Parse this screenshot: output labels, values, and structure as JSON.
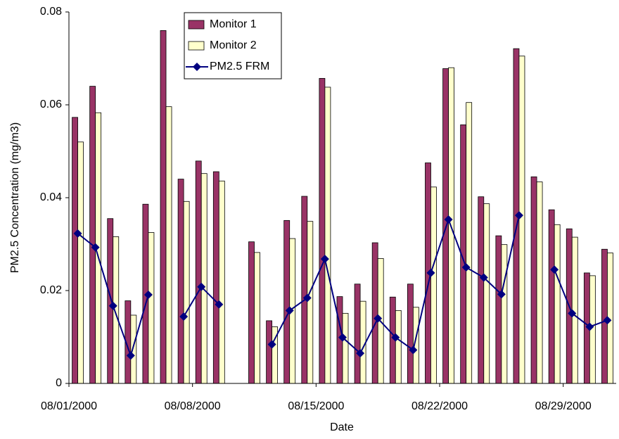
{
  "chart_data": {
    "type": "bar_line",
    "x_label": "Date",
    "y_label": "PM2.5 Concentration (mg/m3)",
    "categories": [
      "08/01/2000",
      null,
      null,
      null,
      null,
      null,
      null,
      "08/08/2000",
      null,
      null,
      null,
      null,
      null,
      null,
      "08/15/2000",
      null,
      null,
      null,
      null,
      null,
      null,
      "08/22/2000",
      null,
      null,
      null,
      null,
      null,
      null,
      "08/29/2000",
      null,
      null
    ],
    "series": [
      {
        "name": "Monitor 1",
        "kind": "bar",
        "color": "#993366",
        "values": [
          0.0573,
          0.064,
          0.0355,
          0.0178,
          0.0386,
          0.076,
          0.044,
          0.0479,
          0.0456,
          null,
          0.0305,
          0.0135,
          0.0351,
          0.0403,
          0.0657,
          0.0187,
          0.0214,
          0.0303,
          0.0186,
          0.0214,
          0.0475,
          0.0678,
          0.0557,
          0.0402,
          0.0318,
          0.0721,
          0.0445,
          0.0374,
          0.0333,
          0.0238,
          0.0289
        ]
      },
      {
        "name": "Monitor 2",
        "kind": "bar",
        "color": "#FFFFCC",
        "values": [
          0.052,
          0.0583,
          0.0316,
          0.0147,
          0.0325,
          0.0596,
          0.0392,
          0.0452,
          0.0436,
          null,
          0.0282,
          0.0122,
          0.0312,
          0.0349,
          0.0638,
          0.0151,
          0.0177,
          0.0269,
          0.0157,
          0.0164,
          0.0423,
          0.068,
          0.0605,
          0.0387,
          0.0299,
          0.0705,
          0.0434,
          0.0342,
          0.0315,
          0.0232,
          0.0281
        ]
      },
      {
        "name": "PM2.5 FRM",
        "kind": "line",
        "color": "#000080",
        "values": [
          0.0323,
          0.0293,
          0.0167,
          0.006,
          0.0191,
          null,
          0.0144,
          0.0208,
          0.017,
          null,
          null,
          0.0084,
          0.0157,
          0.0184,
          0.0268,
          0.0099,
          0.0065,
          0.014,
          0.0099,
          0.0072,
          0.0238,
          0.0353,
          0.025,
          0.0228,
          0.0192,
          0.0362,
          null,
          0.0245,
          0.0151,
          0.0122,
          0.0136
        ]
      }
    ],
    "ylim": [
      0,
      0.08
    ],
    "yticks": [
      0,
      0.02,
      0.04,
      0.06,
      0.08
    ],
    "grid": false
  }
}
